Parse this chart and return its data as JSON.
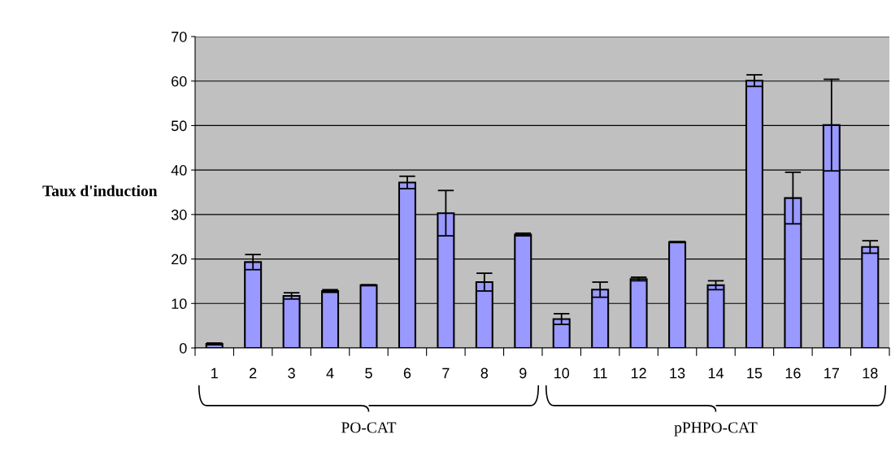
{
  "chart_data": {
    "type": "bar",
    "ylabel": "Taux d'induction",
    "categories": [
      "1",
      "2",
      "3",
      "4",
      "5",
      "6",
      "7",
      "8",
      "9",
      "10",
      "11",
      "12",
      "13",
      "14",
      "15",
      "16",
      "17",
      "18"
    ],
    "values": [
      0.9,
      19.3,
      11.7,
      12.8,
      14.1,
      37.2,
      30.3,
      14.8,
      25.5,
      6.5,
      13.1,
      15.5,
      23.8,
      14.1,
      60.1,
      33.7,
      50.1,
      22.7
    ],
    "errors": [
      0.2,
      1.7,
      0.7,
      0.3,
      0.1,
      1.4,
      5.1,
      2.0,
      0.3,
      1.2,
      1.7,
      0.4,
      0.1,
      1.0,
      1.3,
      5.8,
      10.3,
      1.4
    ],
    "color": "#9999ff",
    "ylim": [
      0,
      70
    ],
    "yticks": [
      0,
      10,
      20,
      30,
      40,
      50,
      60,
      70
    ],
    "grid": "y",
    "annotations": [
      "PO-CAT",
      "pPHPO-CAT"
    ]
  }
}
